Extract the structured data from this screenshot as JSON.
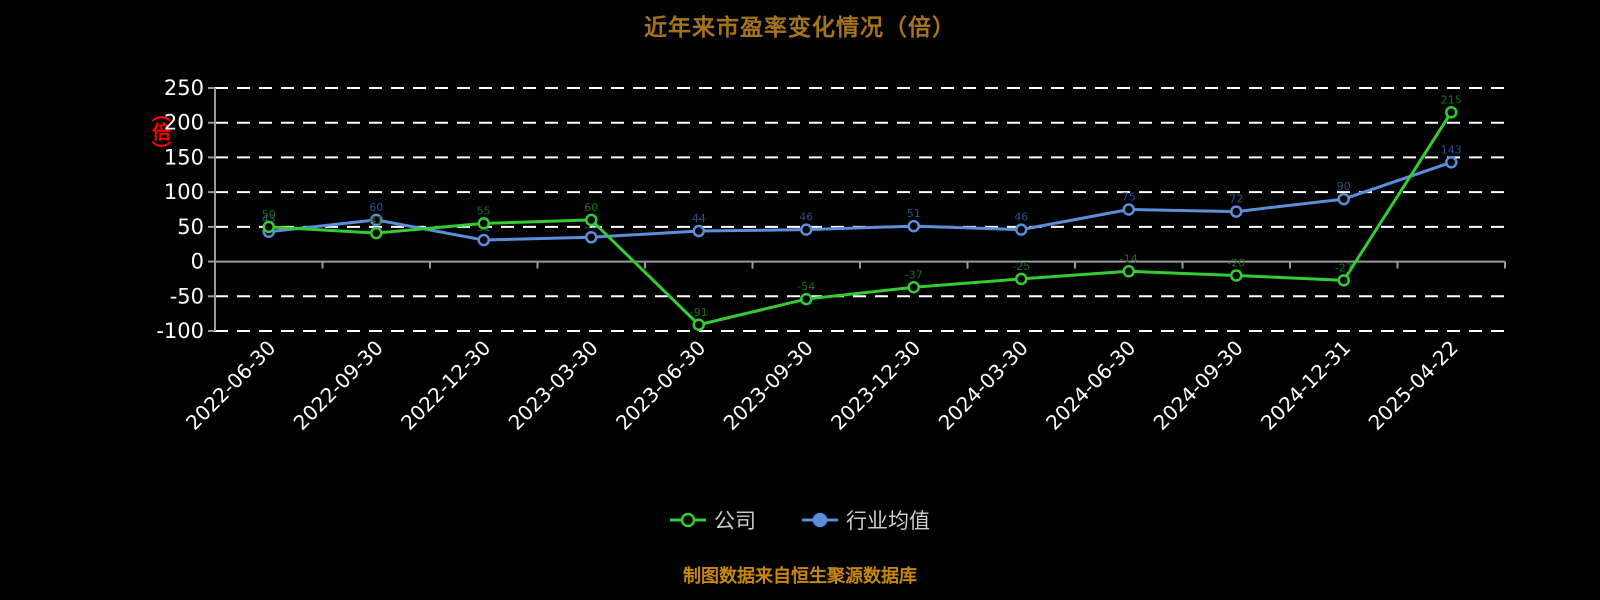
{
  "title": "近年来市盈率变化情况（倍）",
  "y_axis_unit": "（倍）",
  "footer": "制图数据来自恒生聚源数据库",
  "colors": {
    "background": "#000000",
    "title": "#a5731c",
    "footer": "#c8860b",
    "y_axis_unit": "#ff0000",
    "gridline": "#ffffff",
    "axis": "#9a9a9a",
    "tick_label": "#ffffff",
    "company_series": "#33cc33",
    "industry_series": "#5b8ddb"
  },
  "legend": {
    "items": [
      {
        "label": "公司",
        "color": "#33cc33"
      },
      {
        "label": "行业均值",
        "color": "#5b8ddb"
      }
    ]
  },
  "chart_data": {
    "type": "line",
    "title": "近年来市盈率变化情况（倍）",
    "ylabel": "（倍）",
    "categories": [
      "2022-06-30",
      "2022-09-30",
      "2022-12-30",
      "2023-03-30",
      "2023-06-30",
      "2023-09-30",
      "2023-12-30",
      "2024-03-30",
      "2024-06-30",
      "2024-09-30",
      "2024-12-31",
      "2025-04-22"
    ],
    "series": [
      {
        "name": "公司",
        "color": "#33cc33",
        "label_color": "#1c6e1c",
        "values": [
          50,
          41,
          55,
          60,
          -91,
          -54,
          -37,
          -25,
          -14,
          -20,
          -27,
          215
        ]
      },
      {
        "name": "行业均值",
        "color": "#5b8ddb",
        "label_color": "#2a4f8f",
        "values": [
          43,
          60,
          31,
          35,
          44,
          46,
          51,
          46,
          75,
          72,
          90,
          143
        ]
      }
    ],
    "ylim": [
      -100,
      250
    ],
    "yticks": [
      250,
      200,
      150,
      100,
      50,
      0,
      -50,
      -100
    ],
    "grid": true,
    "legend_position": "bottom"
  }
}
